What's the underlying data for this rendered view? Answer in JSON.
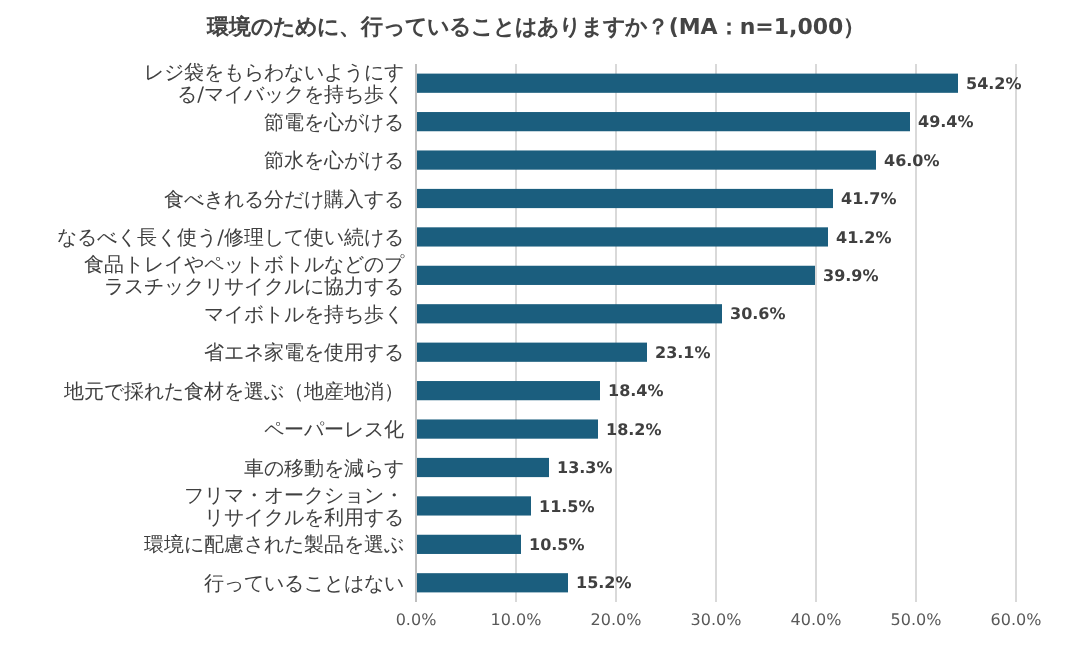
{
  "chart_data": {
    "type": "bar",
    "orientation": "horizontal",
    "title": "環境のために、行っていることはありますか？(MA：n=1,000）",
    "categories": [
      "レジ袋をもらわないようにする/マイバックを持ち歩く",
      "節電を心がける",
      "節水を心がける",
      "食べきれる分だけ購入する",
      "なるべく長く使う/修理して使い続ける",
      "食品トレイやペットボトルなどのプラスチックリサイクルに協力する",
      "マイボトルを持ち歩く",
      "省エネ家電を使用する",
      "地元で採れた食材を選ぶ（地産地消）",
      "ペーパーレス化",
      "車の移動を減らす",
      "フリマ・オークション・リサイクルを利用する",
      "環境に配慮された製品を選ぶ",
      "行っていることはない"
    ],
    "values": [
      54.2,
      49.4,
      46.0,
      41.7,
      41.2,
      39.9,
      30.6,
      23.1,
      18.4,
      18.2,
      13.3,
      11.5,
      10.5,
      15.2
    ],
    "value_labels": [
      "54.2%",
      "49.4%",
      "46.0%",
      "41.7%",
      "41.2%",
      "39.9%",
      "30.6%",
      "23.1%",
      "18.4%",
      "18.2%",
      "13.3%",
      "11.5%",
      "10.5%",
      "15.2%"
    ],
    "color": "#1b5e7e",
    "xlim": [
      0,
      60
    ],
    "xticks": [
      {
        "value": 0,
        "label": "0.0%"
      },
      {
        "value": 10,
        "label": "10.0%"
      },
      {
        "value": 20,
        "label": "20.0%"
      },
      {
        "value": 30,
        "label": "30.0%"
      },
      {
        "value": 40,
        "label": "40.0%"
      },
      {
        "value": 50,
        "label": "50.0%"
      },
      {
        "value": 60,
        "label": "60.0%"
      }
    ],
    "grid": "x"
  }
}
